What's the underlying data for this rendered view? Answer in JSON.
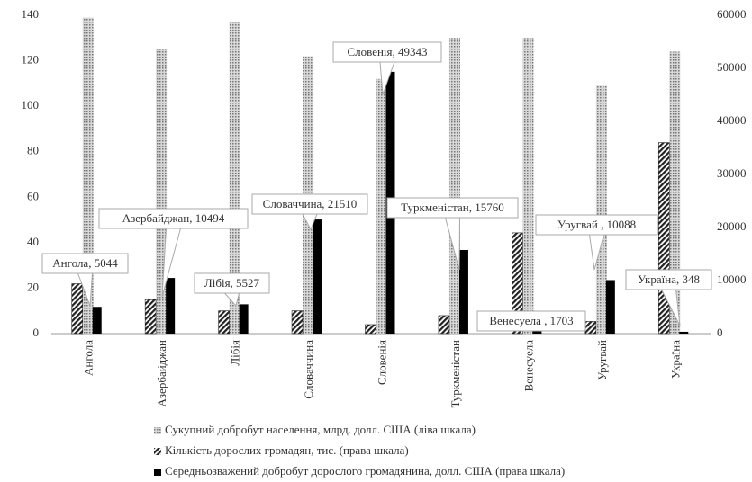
{
  "chart_data": {
    "type": "bar",
    "categories": [
      "Ангола",
      "Азербайджан",
      "Лібія",
      "Словаччина",
      "Словенія",
      "Туркменістан",
      "Венесуела",
      "Уругвай",
      "Україна"
    ],
    "series": [
      {
        "name": "Сукупний  добробут населення, млрд. долл. США (ліва шкала)",
        "color": "#bdbdbd",
        "values": [
          139,
          125,
          137,
          122,
          112,
          130,
          130,
          109,
          124
        ]
      },
      {
        "name": "Кількість дорослих громадян, тис. (права шкала)",
        "color": "#333333",
        "axis": "y2",
        "values": [
          9400,
          6400,
          4300,
          4300,
          1700,
          3400,
          19000,
          2300,
          36000
        ]
      },
      {
        "name": "Середньозважений добробут дорослого громадянина, долл. США (права  шкала)",
        "color": "#000000",
        "axis": "y2",
        "values": [
          5044,
          10494,
          5527,
          21510,
          49343,
          15760,
          1703,
          10088,
          348
        ],
        "value_labels": [
          "Ангола, 5044",
          "Азербайджан, 10494",
          "Лібія, 5527",
          "Словаччина, 21510",
          "Словенія, 49343",
          "Туркменістан, 15760",
          "Венесуела , 1703",
          "Уругвай , 10088",
          "Україна, 348"
        ]
      }
    ],
    "ylim": [
      0,
      140
    ],
    "yticks": [
      0,
      20,
      40,
      60,
      80,
      100,
      120,
      140
    ],
    "y2lim": [
      0,
      60000
    ],
    "y2ticks": [
      0,
      10000,
      20000,
      30000,
      40000,
      50000,
      60000
    ],
    "grid": false
  }
}
